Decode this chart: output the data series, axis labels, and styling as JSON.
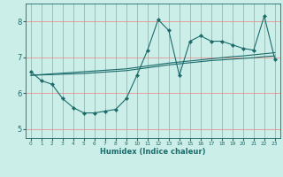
{
  "title": "",
  "xlabel": "Humidex (Indice chaleur)",
  "bg_color": "#cceee8",
  "grid_color_v": "#f08080",
  "grid_color_h": "#f08080",
  "line_color": "#1a6b6b",
  "xlim": [
    -0.5,
    23.5
  ],
  "ylim": [
    4.75,
    8.5
  ],
  "yticks": [
    5,
    6,
    7,
    8
  ],
  "xticks": [
    0,
    1,
    2,
    3,
    4,
    5,
    6,
    7,
    8,
    9,
    10,
    11,
    12,
    13,
    14,
    15,
    16,
    17,
    18,
    19,
    20,
    21,
    22,
    23
  ],
  "series1_x": [
    0,
    1,
    2,
    3,
    4,
    5,
    6,
    7,
    8,
    9,
    10,
    11,
    12,
    13,
    14,
    15,
    16,
    17,
    18,
    19,
    20,
    21,
    22,
    23
  ],
  "series1_y": [
    6.6,
    6.35,
    6.25,
    5.85,
    5.6,
    5.45,
    5.45,
    5.5,
    5.55,
    5.85,
    6.5,
    7.2,
    8.05,
    7.75,
    6.5,
    7.45,
    7.6,
    7.45,
    7.45,
    7.35,
    7.25,
    7.2,
    8.15,
    6.95
  ],
  "series2_y": [
    6.5,
    6.52,
    6.54,
    6.56,
    6.58,
    6.6,
    6.62,
    6.64,
    6.66,
    6.68,
    6.72,
    6.76,
    6.8,
    6.84,
    6.87,
    6.9,
    6.93,
    6.96,
    6.99,
    7.02,
    7.04,
    7.07,
    7.1,
    7.13
  ],
  "series3_y": [
    6.5,
    6.51,
    6.52,
    6.53,
    6.54,
    6.55,
    6.57,
    6.59,
    6.61,
    6.63,
    6.67,
    6.71,
    6.75,
    6.79,
    6.82,
    6.85,
    6.88,
    6.91,
    6.93,
    6.95,
    6.97,
    6.99,
    7.02,
    7.04
  ]
}
